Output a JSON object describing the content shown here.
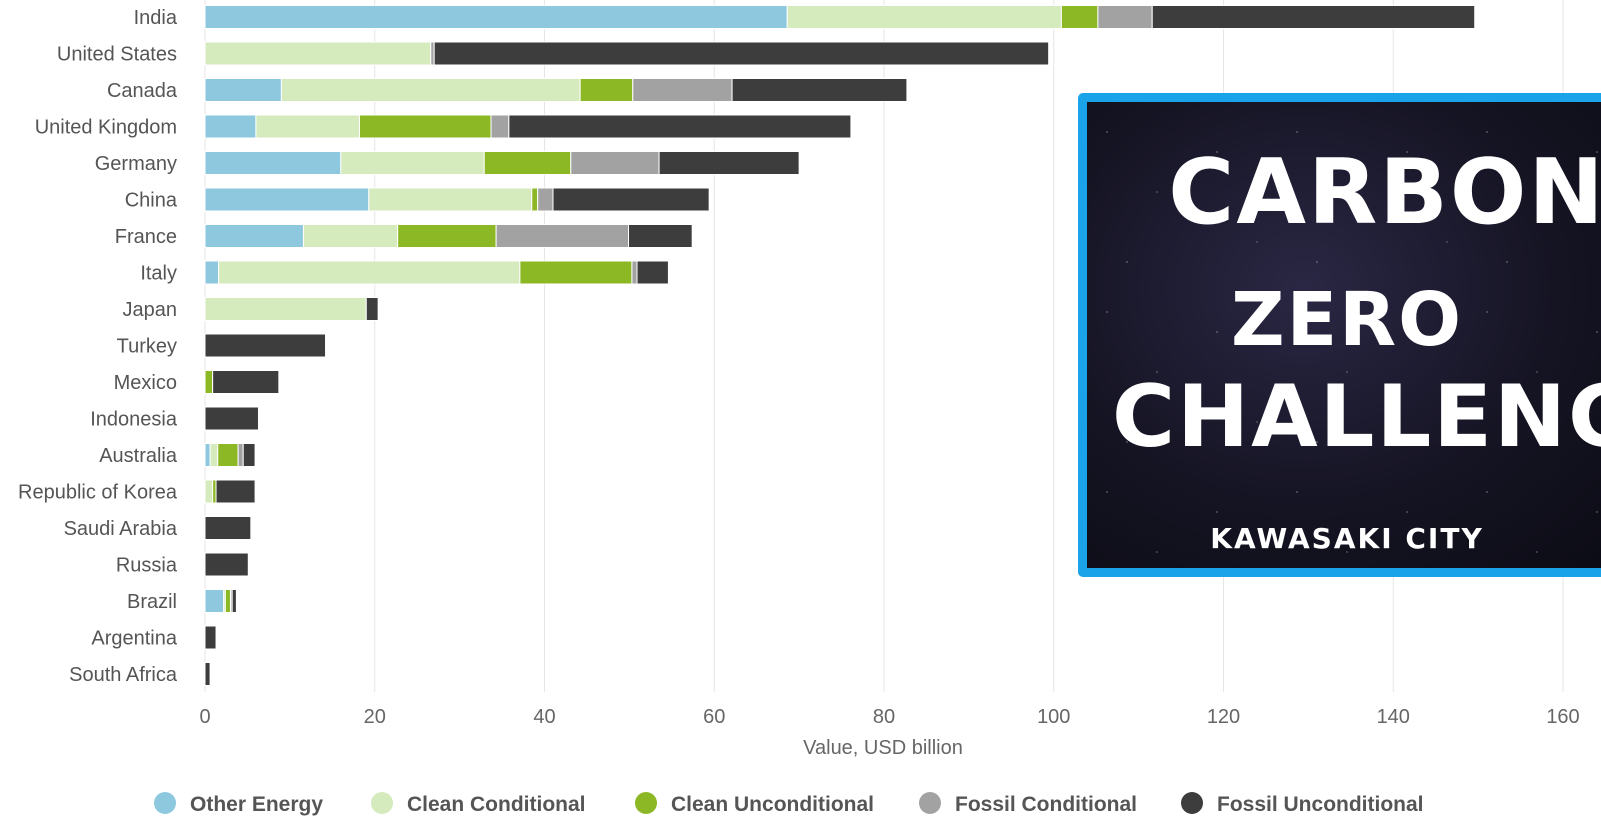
{
  "chart_data": {
    "type": "bar",
    "orientation": "horizontal",
    "stacked": true,
    "categories": [
      "India",
      "United States",
      "Canada",
      "United Kingdom",
      "Germany",
      "China",
      "France",
      "Italy",
      "Japan",
      "Turkey",
      "Mexico",
      "Indonesia",
      "Australia",
      "Republic of Korea",
      "Saudi Arabia",
      "Russia",
      "Brazil",
      "Argentina",
      "South Africa"
    ],
    "series": [
      {
        "name": "Other Energy",
        "color": "#8ec8df",
        "values": [
          68.6,
          0,
          9.0,
          6.0,
          16.0,
          19.3,
          11.6,
          1.6,
          0,
          0,
          0,
          0,
          0.6,
          0,
          0,
          0,
          2.2,
          0,
          0
        ]
      },
      {
        "name": "Clean Conditional",
        "color": "#d5eabd",
        "values": [
          32.3,
          26.6,
          35.2,
          12.2,
          16.9,
          19.2,
          11.1,
          35.5,
          19.0,
          0,
          0,
          0,
          0.9,
          0.9,
          0,
          0,
          0.2,
          0,
          0
        ]
      },
      {
        "name": "Clean Unconditional",
        "color": "#8db825",
        "values": [
          4.3,
          0,
          6.2,
          15.5,
          10.2,
          0.7,
          11.6,
          13.2,
          0,
          0,
          0.9,
          0,
          2.4,
          0.4,
          0,
          0,
          0.6,
          0,
          0
        ]
      },
      {
        "name": "Fossil Conditional",
        "color": "#a2a2a2",
        "values": [
          6.4,
          0.4,
          11.7,
          2.1,
          10.4,
          1.8,
          15.6,
          0.6,
          0,
          0,
          0,
          0,
          0.6,
          0,
          0,
          0,
          0.2,
          0,
          0
        ]
      },
      {
        "name": "Fossil Unconditional",
        "color": "#3d3d3d",
        "values": [
          38.0,
          72.4,
          20.6,
          40.3,
          16.5,
          18.4,
          7.5,
          3.7,
          1.4,
          14.2,
          7.8,
          6.3,
          1.4,
          4.6,
          5.4,
          5.1,
          0.5,
          1.3,
          0.6
        ]
      }
    ],
    "xlabel": "Value, USD billion",
    "xlim": [
      0,
      160
    ],
    "xticks": [
      0,
      20,
      40,
      60,
      80,
      100,
      120,
      140,
      160
    ],
    "grid": "vertical",
    "legend_position": "bottom"
  },
  "overlay": {
    "line1": "CARBON",
    "line2": "ZERO",
    "line3": "CHALLENG",
    "subtitle": "KAWASAKI CITY",
    "border_color": "#1aa3e8"
  }
}
